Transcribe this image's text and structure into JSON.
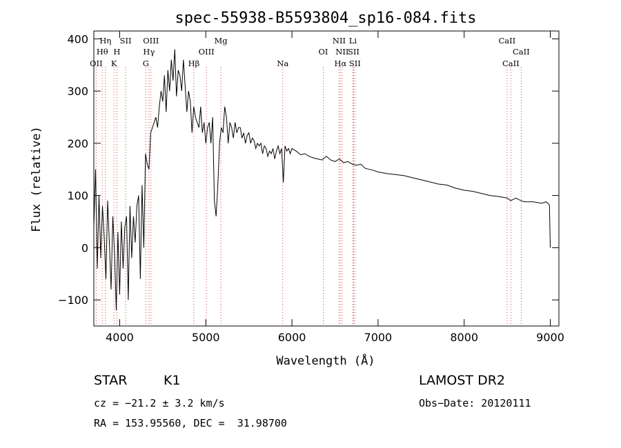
{
  "chart_data": {
    "type": "line",
    "title": "spec-55938-B5593804_sp16-084.fits",
    "xlabel": "Wavelength (Å)",
    "ylabel": "Flux (relative)",
    "xlim": [
      3700,
      9100
    ],
    "ylim": [
      -150,
      415
    ],
    "x_ticks": [
      4000,
      5000,
      6000,
      7000,
      8000,
      9000
    ],
    "y_ticks": [
      -100,
      0,
      100,
      200,
      300,
      400
    ],
    "grid": false,
    "series": [
      {
        "x": [
          3700,
          3720,
          3740,
          3760,
          3780,
          3800,
          3820,
          3840,
          3860,
          3880,
          3900,
          3920,
          3940,
          3960,
          3980,
          4000,
          4020,
          4040,
          4060,
          4080,
          4100,
          4120,
          4140,
          4160,
          4180,
          4200,
          4220,
          4240,
          4260,
          4280,
          4300,
          4320,
          4340,
          4360,
          4380,
          4400,
          4420,
          4440,
          4460,
          4480,
          4500,
          4520,
          4540,
          4560,
          4580,
          4600,
          4620,
          4640,
          4660,
          4680,
          4700,
          4720,
          4740,
          4760,
          4780,
          4800,
          4820,
          4840,
          4860,
          4880,
          4900,
          4920,
          4940,
          4960,
          4980,
          5000,
          5020,
          5040,
          5060,
          5080,
          5100,
          5120,
          5140,
          5160,
          5180,
          5200,
          5220,
          5240,
          5260,
          5280,
          5300,
          5320,
          5340,
          5360,
          5380,
          5400,
          5420,
          5440,
          5460,
          5480,
          5500,
          5520,
          5540,
          5560,
          5580,
          5600,
          5620,
          5640,
          5660,
          5680,
          5700,
          5720,
          5740,
          5760,
          5780,
          5800,
          5820,
          5840,
          5860,
          5880,
          5900,
          5920,
          5940,
          5960,
          5980,
          6000,
          6050,
          6100,
          6150,
          6200,
          6250,
          6300,
          6350,
          6400,
          6450,
          6500,
          6550,
          6600,
          6650,
          6700,
          6750,
          6800,
          6850,
          6900,
          6950,
          7000,
          7100,
          7200,
          7300,
          7400,
          7500,
          7600,
          7700,
          7800,
          7900,
          8000,
          8100,
          8200,
          8300,
          8400,
          8500,
          8540,
          8600,
          8660,
          8700,
          8800,
          8900,
          8950,
          8990,
          9000
        ],
        "y": [
          40,
          150,
          -40,
          100,
          -20,
          80,
          20,
          -60,
          90,
          10,
          -80,
          60,
          -10,
          -120,
          30,
          -90,
          50,
          -40,
          40,
          60,
          -100,
          80,
          -20,
          60,
          10,
          80,
          100,
          -60,
          120,
          0,
          180,
          160,
          150,
          220,
          230,
          240,
          250,
          230,
          270,
          300,
          280,
          330,
          260,
          340,
          300,
          360,
          320,
          380,
          290,
          340,
          330,
          300,
          360,
          310,
          260,
          300,
          280,
          220,
          270,
          250,
          240,
          230,
          270,
          220,
          240,
          200,
          230,
          240,
          200,
          250,
          90,
          60,
          120,
          200,
          230,
          220,
          270,
          250,
          200,
          240,
          230,
          210,
          240,
          220,
          230,
          230,
          210,
          220,
          200,
          215,
          220,
          200,
          210,
          205,
          190,
          200,
          195,
          200,
          180,
          195,
          190,
          175,
          185,
          180,
          190,
          170,
          185,
          195,
          180,
          190,
          125,
          195,
          185,
          190,
          180,
          190,
          185,
          178,
          180,
          175,
          172,
          170,
          168,
          175,
          168,
          165,
          170,
          163,
          165,
          160,
          158,
          160,
          152,
          150,
          148,
          145,
          142,
          140,
          138,
          134,
          130,
          126,
          122,
          120,
          114,
          110,
          108,
          104,
          100,
          98,
          95,
          90,
          95,
          90,
          88,
          88,
          85,
          88,
          82,
          0
        ]
      }
    ],
    "line_markers": [
      {
        "label": "OII",
        "x": 3727,
        "row": 3
      },
      {
        "label": "Hθ",
        "x": 3798,
        "row": 2
      },
      {
        "label": "Hη",
        "x": 3835,
        "row": 1
      },
      {
        "label": "SII",
        "x": 4069,
        "row": 1
      },
      {
        "label": "H",
        "x": 3968,
        "row": 2
      },
      {
        "label": "K",
        "x": 3934,
        "row": 3
      },
      {
        "label": "OIII",
        "x": 4363,
        "row": 1
      },
      {
        "label": "Hγ",
        "x": 4340,
        "row": 2
      },
      {
        "label": "G",
        "x": 4304,
        "row": 3
      },
      {
        "label": "Hβ",
        "x": 4861,
        "row": 3
      },
      {
        "label": "OIII",
        "x": 5007,
        "row": 2
      },
      {
        "label": "Mg",
        "x": 5175,
        "row": 1
      },
      {
        "label": "Na",
        "x": 5893,
        "row": 3
      },
      {
        "label": "OI",
        "x": 6364,
        "row": 2
      },
      {
        "label": "NII",
        "x": 6548,
        "row": 1
      },
      {
        "label": "NII",
        "x": 6583,
        "row": 2
      },
      {
        "label": "Li",
        "x": 6708,
        "row": 1
      },
      {
        "label": "SII",
        "x": 6716,
        "row": 2
      },
      {
        "label": "Hα",
        "x": 6563,
        "row": 3
      },
      {
        "label": "SII",
        "x": 6731,
        "row": 3
      },
      {
        "label": "CaII",
        "x": 8498,
        "row": 1
      },
      {
        "label": "CaII",
        "x": 8542,
        "row": 3
      },
      {
        "label": "CaII",
        "x": 8662,
        "row": 2
      }
    ]
  },
  "footer": {
    "class_label": "STAR",
    "subclass": "K1",
    "survey": "LAMOST DR2",
    "cz": "cz = −21.2 ± 3.2 km/s",
    "obs_date": "Obs−Date: 20120111",
    "coords": "RA = 153.95560, DEC =  31.98700"
  }
}
